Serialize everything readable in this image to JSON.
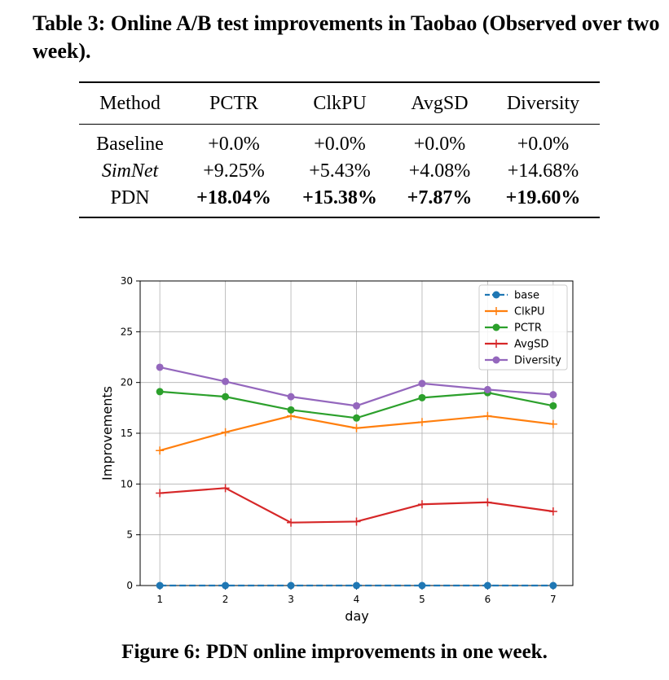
{
  "table": {
    "caption": "Table 3: Online A/B test improvements in Taobao (Observed over two week).",
    "headers": [
      "Method",
      "PCTR",
      "ClkPU",
      "AvgSD",
      "Diversity"
    ],
    "rows": [
      {
        "method": "Baseline",
        "pctr": "+0.0%",
        "clkpu": "+0.0%",
        "avgsd": "+0.0%",
        "diversity": "+0.0%"
      },
      {
        "method": "SimNet",
        "pctr": "+9.25%",
        "clkpu": "+5.43%",
        "avgsd": "+4.08%",
        "diversity": "+14.68%"
      },
      {
        "method": "PDN",
        "pctr": "+18.04%",
        "clkpu": "+15.38%",
        "avgsd": "+7.87%",
        "diversity": "+19.60%"
      }
    ]
  },
  "figure_caption": "Figure 6: PDN online improvements in one week.",
  "chart_data": {
    "type": "line",
    "title": "",
    "xlabel": "day",
    "ylabel": "Improvements",
    "x": [
      1,
      2,
      3,
      4,
      5,
      6,
      7
    ],
    "xlim": [
      0.7,
      7.3
    ],
    "ylim": [
      0,
      30
    ],
    "yticks": [
      0,
      5,
      10,
      15,
      20,
      25,
      30
    ],
    "grid": true,
    "legend_position": "top-right",
    "series": [
      {
        "name": "base",
        "values": [
          0,
          0,
          0,
          0,
          0,
          0,
          0
        ],
        "color": "#1f77b4",
        "marker": "circle",
        "dashed": true
      },
      {
        "name": "ClkPU",
        "values": [
          13.3,
          15.1,
          16.7,
          15.5,
          16.1,
          16.7,
          15.9
        ],
        "color": "#ff7f0e",
        "marker": "plus",
        "dashed": false
      },
      {
        "name": "PCTR",
        "values": [
          19.1,
          18.6,
          17.3,
          16.5,
          18.5,
          19.0,
          17.7
        ],
        "color": "#2ca02c",
        "marker": "circle",
        "dashed": false
      },
      {
        "name": "AvgSD",
        "values": [
          9.1,
          9.6,
          6.2,
          6.3,
          8.0,
          8.2,
          7.3
        ],
        "color": "#d62728",
        "marker": "plus",
        "dashed": false
      },
      {
        "name": "Diversity",
        "values": [
          21.5,
          20.1,
          18.6,
          17.7,
          19.9,
          19.3,
          18.8
        ],
        "color": "#9467bd",
        "marker": "circle",
        "dashed": false
      }
    ]
  }
}
